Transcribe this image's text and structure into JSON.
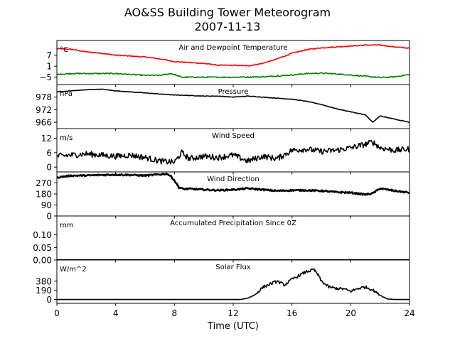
{
  "header": {
    "title": "AO&SS Building Tower Meteorogram",
    "date": "2007-11-13"
  },
  "chart_data": {
    "type": "line",
    "xlabel": "Time (UTC)",
    "xlim": [
      0,
      24
    ],
    "xticks": [
      0,
      4,
      8,
      12,
      16,
      20,
      24
    ],
    "panels": [
      {
        "name": "temperature",
        "title": "Air and Dewpoint Temperature",
        "unit": "°C",
        "ylim": [
          -9,
          15
        ],
        "yticks": [
          -5,
          1,
          7
        ],
        "ytick_labels": [
          "−5",
          "1",
          "7"
        ],
        "series": [
          {
            "color": "#ff0000",
            "style": "noisy",
            "noise": 0.25,
            "x": [
              0,
              1,
              2,
              3,
              4,
              5,
              6,
              7,
              8,
              9,
              10,
              11,
              12,
              13,
              14,
              15,
              16,
              17,
              18,
              19,
              20,
              21,
              22,
              23,
              24
            ],
            "y": [
              10.5,
              10.2,
              8.8,
              8.1,
              7.0,
              6.5,
              6.0,
              5.0,
              3.5,
              3.0,
              2.5,
              1.5,
              1.5,
              1.2,
              2.5,
              5.0,
              8.0,
              10.0,
              11.0,
              11.5,
              12.0,
              12.5,
              12.5,
              11.5,
              10.8
            ]
          },
          {
            "color": "#008000",
            "style": "noisy",
            "noise": 0.3,
            "x": [
              0,
              1,
              2,
              3,
              4,
              5,
              6,
              7,
              7.8,
              8.5,
              10,
              12,
              14,
              16,
              17,
              18,
              19,
              20,
              21,
              22,
              23,
              24
            ],
            "y": [
              -3.5,
              -3.0,
              -3.0,
              -3.0,
              -3.0,
              -3.5,
              -4.0,
              -4.0,
              -3.0,
              -5.0,
              -5.0,
              -5.0,
              -4.8,
              -3.8,
              -3.0,
              -2.8,
              -3.2,
              -3.8,
              -4.5,
              -5.2,
              -4.8,
              -3.5
            ]
          }
        ]
      },
      {
        "name": "pressure",
        "title": "Pressure",
        "unit": "hPa",
        "ylim": [
          963,
          984
        ],
        "yticks": [
          966,
          972,
          978
        ],
        "ytick_labels": [
          "966",
          "972",
          "978"
        ],
        "series": [
          {
            "color": "#000000",
            "style": "noisy",
            "noise": 0.12,
            "x": [
              0,
              1,
              2,
              3,
              4,
              5,
              6,
              7,
              8,
              9,
              10,
              11,
              12,
              13,
              14,
              15,
              16,
              17,
              18,
              19,
              20,
              21,
              21.5,
              22,
              23,
              24
            ],
            "y": [
              980.5,
              981.0,
              981.5,
              981.8,
              981.0,
              980.5,
              980.0,
              979.5,
              979.0,
              978.8,
              978.5,
              978.5,
              978.0,
              978.5,
              978.0,
              977.5,
              977.0,
              976.0,
              974.5,
              972.5,
              971.0,
              969.5,
              966.0,
              969.0,
              967.5,
              966.0
            ]
          }
        ]
      },
      {
        "name": "wind-speed",
        "title": "Wind Speed",
        "unit": "m/s",
        "ylim": [
          -2,
          16
        ],
        "yticks": [
          0,
          6,
          12
        ],
        "ytick_labels": [
          "0",
          "6",
          "12"
        ],
        "series": [
          {
            "color": "#000000",
            "style": "noisy",
            "noise": 1.2,
            "x": [
              0,
              2,
              3,
              4,
              5,
              6,
              7,
              8,
              8.5,
              9,
              10,
              11,
              12,
              13,
              14,
              15,
              16,
              17,
              18,
              19,
              20,
              21,
              21.5,
              22,
              23,
              24
            ],
            "y": [
              4.5,
              5.5,
              5.0,
              4.5,
              5.0,
              4.0,
              2.5,
              2.0,
              6.0,
              3.5,
              4.5,
              4.0,
              5.0,
              2.5,
              4.5,
              3.5,
              7.0,
              7.5,
              6.5,
              7.0,
              8.0,
              9.5,
              10.5,
              8.0,
              7.0,
              7.5
            ]
          }
        ]
      },
      {
        "name": "wind-direction",
        "title": "Wind Direction",
        "unit": "",
        "ylim": [
          0,
          360
        ],
        "yticks": [
          0,
          90,
          180,
          270
        ],
        "ytick_labels": [
          "0",
          "90",
          "180",
          "270"
        ],
        "series": [
          {
            "color": "#000000",
            "style": "thick",
            "noise": 6,
            "x": [
              0,
              1,
              2,
              3,
              4,
              5,
              6,
              7,
              7.5,
              7.8,
              8.0,
              8.3,
              8.6,
              9,
              10,
              11,
              12,
              13,
              14,
              15,
              16,
              17,
              18,
              19,
              20,
              21,
              21.5,
              22,
              23,
              24
            ],
            "y": [
              315,
              330,
              330,
              335,
              338,
              335,
              330,
              340,
              345,
              320,
              290,
              235,
              220,
              222,
              215,
              210,
              215,
              225,
              215,
              205,
              210,
              210,
              205,
              195,
              190,
              175,
              185,
              225,
              205,
              190
            ]
          }
        ]
      },
      {
        "name": "precipitation",
        "title": "Accumulated Precipitation Since 0Z",
        "unit": "mm",
        "ylim": [
          0,
          0.175
        ],
        "yticks": [
          0.0,
          0.05,
          0.1
        ],
        "ytick_labels": [
          "0.00",
          "0.05",
          "0.10"
        ],
        "series": [
          {
            "color": "#000000",
            "style": "flat",
            "noise": 0,
            "x": [
              0,
              24
            ],
            "y": [
              0.0,
              0.0
            ]
          }
        ]
      },
      {
        "name": "solar-flux",
        "title": "Solar Flux",
        "unit": "W/m^2",
        "ylim": [
          -80,
          820
        ],
        "yticks": [
          0,
          190,
          380
        ],
        "ytick_labels": [
          "0",
          "190",
          "380"
        ],
        "series": [
          {
            "color": "#000000",
            "style": "noisy",
            "noise": 30,
            "x": [
              0,
              12.5,
              13.0,
              13.5,
              14.0,
              14.5,
              15.0,
              15.5,
              16.0,
              16.5,
              17.0,
              17.5,
              17.8,
              18.0,
              18.5,
              19.0,
              19.5,
              20.0,
              20.5,
              21.0,
              21.5,
              22.0,
              22.5,
              23,
              24
            ],
            "y": [
              0,
              0,
              30,
              100,
              250,
              320,
              380,
              300,
              420,
              500,
              580,
              620,
              500,
              380,
              260,
              230,
              220,
              170,
              230,
              260,
              200,
              90,
              10,
              0,
              0
            ]
          }
        ]
      }
    ]
  }
}
